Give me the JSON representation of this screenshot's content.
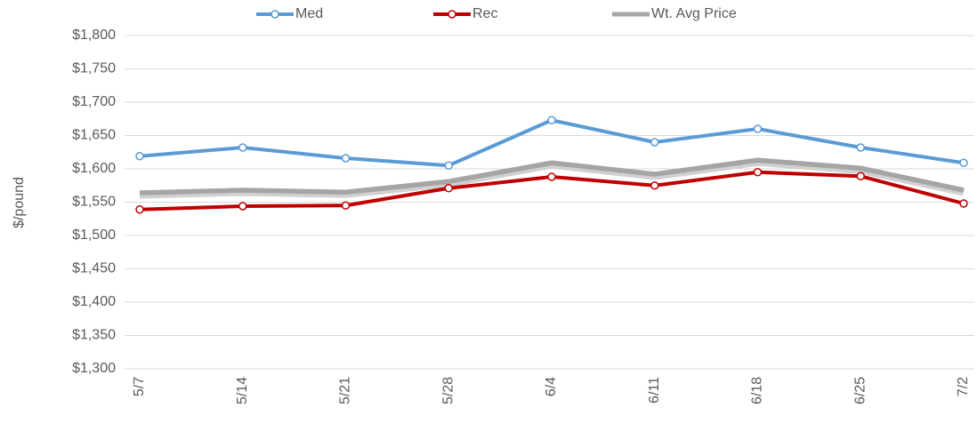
{
  "chart_data": {
    "type": "line",
    "y_label": "$/pound",
    "categories": [
      "5/7",
      "5/14",
      "5/21",
      "5/28",
      "6/4",
      "6/11",
      "6/18",
      "6/25",
      "7/2"
    ],
    "series": [
      {
        "name": "Med",
        "color": "#5b9bd5",
        "values": [
          1619,
          1632,
          1616,
          1605,
          1673,
          1640,
          1660,
          1632,
          1609
        ]
      },
      {
        "name": "Rec",
        "color": "#c00000",
        "values": [
          1539,
          1544,
          1545,
          1571,
          1588,
          1575,
          1595,
          1589,
          1548
        ]
      },
      {
        "name": "Wt. Avg Price",
        "color": "#a5a5a5",
        "values": [
          1564,
          1568,
          1565,
          1581,
          1609,
          1592,
          1613,
          1601,
          1568
        ]
      }
    ],
    "ylim": [
      1300,
      1800
    ],
    "yticks": [
      {
        "value": 1300,
        "label": "$1,300"
      },
      {
        "value": 1350,
        "label": "$1,350"
      },
      {
        "value": 1400,
        "label": "$1,400"
      },
      {
        "value": 1450,
        "label": "$1,450"
      },
      {
        "value": 1500,
        "label": "$1,500"
      },
      {
        "value": 1550,
        "label": "$1,550"
      },
      {
        "value": 1600,
        "label": "$1,600"
      },
      {
        "value": 1650,
        "label": "$1,650"
      },
      {
        "value": 1700,
        "label": "$1,700"
      },
      {
        "value": 1750,
        "label": "$1,750"
      },
      {
        "value": 1800,
        "label": "$1,800"
      }
    ],
    "grid": true,
    "legend": "top"
  }
}
